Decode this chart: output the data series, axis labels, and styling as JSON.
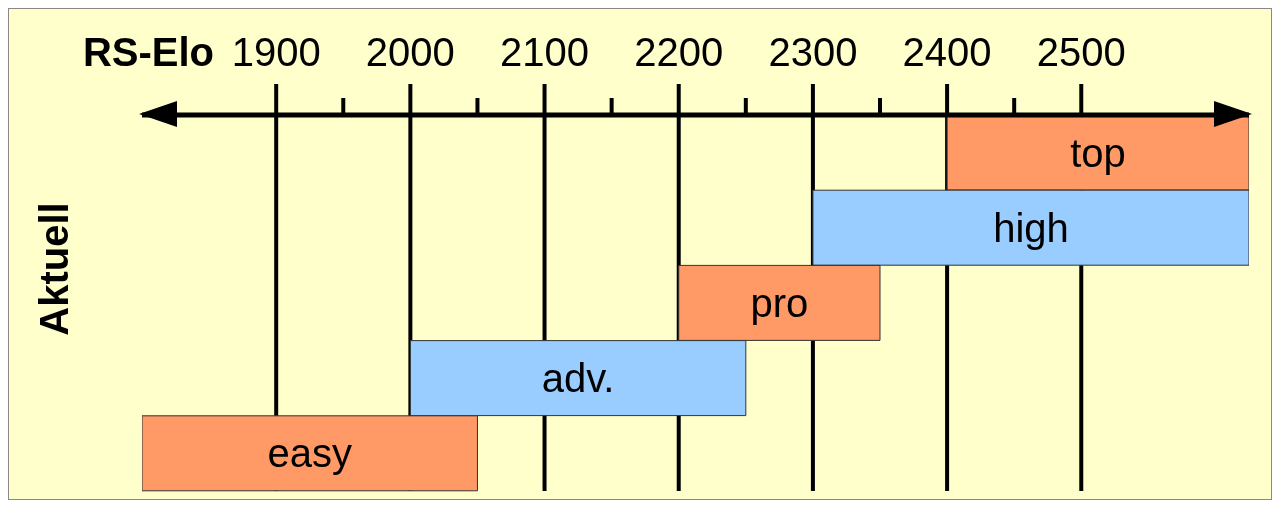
{
  "chart_data": {
    "type": "bar",
    "orientation": "horizontal",
    "xlabel": "RS-Elo",
    "ylabel": "Aktuell",
    "categories": [
      "top",
      "high",
      "pro",
      "adv.",
      "easy"
    ],
    "base": [
      2400,
      2300,
      2200,
      2000,
      1800
    ],
    "values": [
      225,
      325,
      150,
      250,
      250
    ],
    "colors": [
      "#ff9966",
      "#99ccff",
      "#ff9966",
      "#99ccff",
      "#ff9966"
    ],
    "xlim": [
      1800,
      2625
    ],
    "xticks": [
      1900,
      {
        "value": 1950,
        "label": null
      },
      2000,
      {
        "value": 2050,
        "label": null
      },
      2100,
      {
        "value": 2150,
        "label": null
      },
      2200,
      {
        "value": 2250,
        "label": null
      },
      2300,
      {
        "value": 2350,
        "label": null
      },
      2400,
      {
        "value": 2450,
        "label": null
      },
      2500
    ],
    "grid": "x"
  }
}
